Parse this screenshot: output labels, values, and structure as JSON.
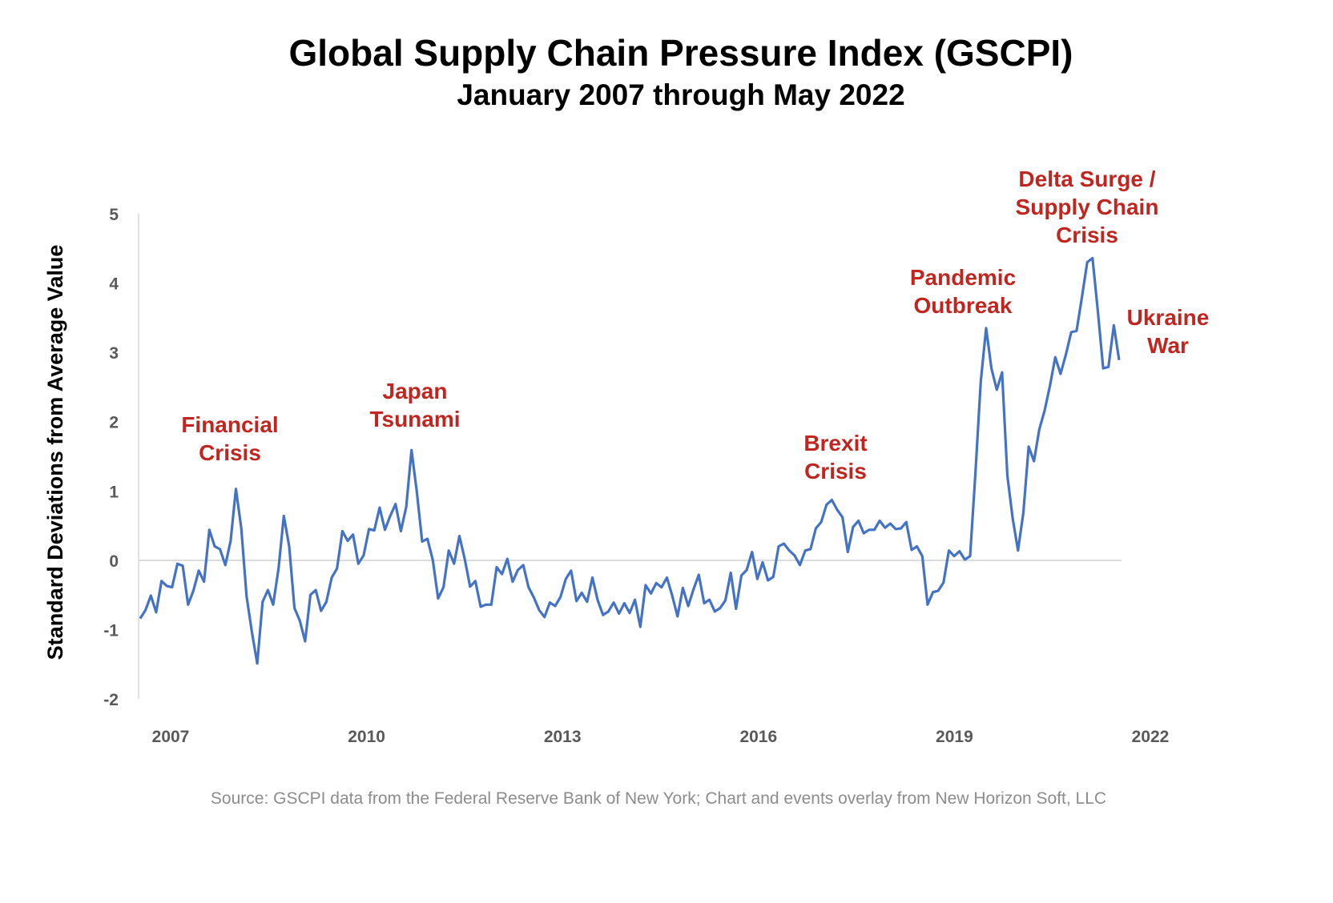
{
  "chart_data": {
    "type": "line",
    "title": "Global Supply Chain Pressure Index (GSCPI)",
    "subtitle": "January 2007 through May 2022",
    "xlabel": "",
    "ylabel": "Standard Deviations from Average Value",
    "x_ticks": [
      "2007",
      "2010",
      "2013",
      "2016",
      "2019",
      "2022"
    ],
    "y_ticks": [
      5,
      4,
      3,
      2,
      1,
      0,
      -1,
      -2
    ],
    "ylim": [
      -2,
      5
    ],
    "grid": "zero line only",
    "line_color": "#4472c4",
    "annotation_color": "#c0261f",
    "series": [
      {
        "values": [
          -0.84,
          -0.72,
          -0.51,
          -0.75,
          -0.3,
          -0.37,
          -0.39,
          -0.05,
          -0.08,
          -0.64,
          -0.44,
          -0.15,
          -0.31,
          0.44,
          0.2,
          0.16,
          -0.07,
          0.28,
          1.03,
          0.46,
          -0.52,
          -1.04,
          -1.49,
          -0.6,
          -0.43,
          -0.64,
          -0.12,
          0.64,
          0.2,
          -0.69,
          -0.87,
          -1.17,
          -0.5,
          -0.43,
          -0.73,
          -0.6,
          -0.25,
          -0.12,
          0.42,
          0.28,
          0.37,
          -0.05,
          0.07,
          0.45,
          0.43,
          0.76,
          0.44,
          0.64,
          0.81,
          0.42,
          0.77,
          1.59,
          0.99,
          0.27,
          0.31,
          0.0,
          -0.55,
          -0.39,
          0.14,
          -0.05,
          0.35,
          0.02,
          -0.38,
          -0.3,
          -0.67,
          -0.64,
          -0.64,
          -0.1,
          -0.2,
          0.02,
          -0.31,
          -0.14,
          -0.07,
          -0.39,
          -0.54,
          -0.72,
          -0.82,
          -0.61,
          -0.66,
          -0.53,
          -0.27,
          -0.15,
          -0.59,
          -0.47,
          -0.6,
          -0.25,
          -0.58,
          -0.79,
          -0.74,
          -0.61,
          -0.77,
          -0.62,
          -0.76,
          -0.57,
          -0.96,
          -0.36,
          -0.48,
          -0.33,
          -0.39,
          -0.25,
          -0.51,
          -0.81,
          -0.4,
          -0.66,
          -0.42,
          -0.21,
          -0.62,
          -0.57,
          -0.74,
          -0.69,
          -0.58,
          -0.18,
          -0.7,
          -0.22,
          -0.14,
          0.12,
          -0.27,
          -0.03,
          -0.29,
          -0.24,
          0.2,
          0.24,
          0.14,
          0.07,
          -0.07,
          0.14,
          0.16,
          0.46,
          0.55,
          0.8,
          0.87,
          0.73,
          0.62,
          0.12,
          0.48,
          0.57,
          0.39,
          0.44,
          0.44,
          0.57,
          0.47,
          0.53,
          0.45,
          0.46,
          0.55,
          0.15,
          0.2,
          0.06,
          -0.64,
          -0.46,
          -0.44,
          -0.32,
          0.14,
          0.06,
          0.13,
          0.01,
          0.06,
          1.27,
          2.58,
          3.35,
          2.77,
          2.46,
          2.71,
          1.22,
          0.6,
          0.14,
          0.69,
          1.64,
          1.43,
          1.89,
          2.16,
          2.52,
          2.93,
          2.69,
          2.97,
          3.29,
          3.31,
          3.79,
          4.3,
          4.36,
          3.6,
          2.77,
          2.79,
          3.39,
          2.89
        ]
      }
    ],
    "annotations": [
      {
        "lines": [
          "Financial",
          "Crisis"
        ]
      },
      {
        "lines": [
          "Japan",
          "Tsunami"
        ]
      },
      {
        "lines": [
          "Brexit",
          "Crisis"
        ]
      },
      {
        "lines": [
          "Pandemic",
          "Outbreak"
        ]
      },
      {
        "lines": [
          "Delta Surge /",
          "Supply Chain",
          "Crisis"
        ]
      },
      {
        "lines": [
          "Ukraine",
          "War"
        ]
      }
    ],
    "source": "Source: GSCPI data from the Federal Reserve Bank of New York; Chart and events overlay from New Horizon Soft, LLC"
  }
}
